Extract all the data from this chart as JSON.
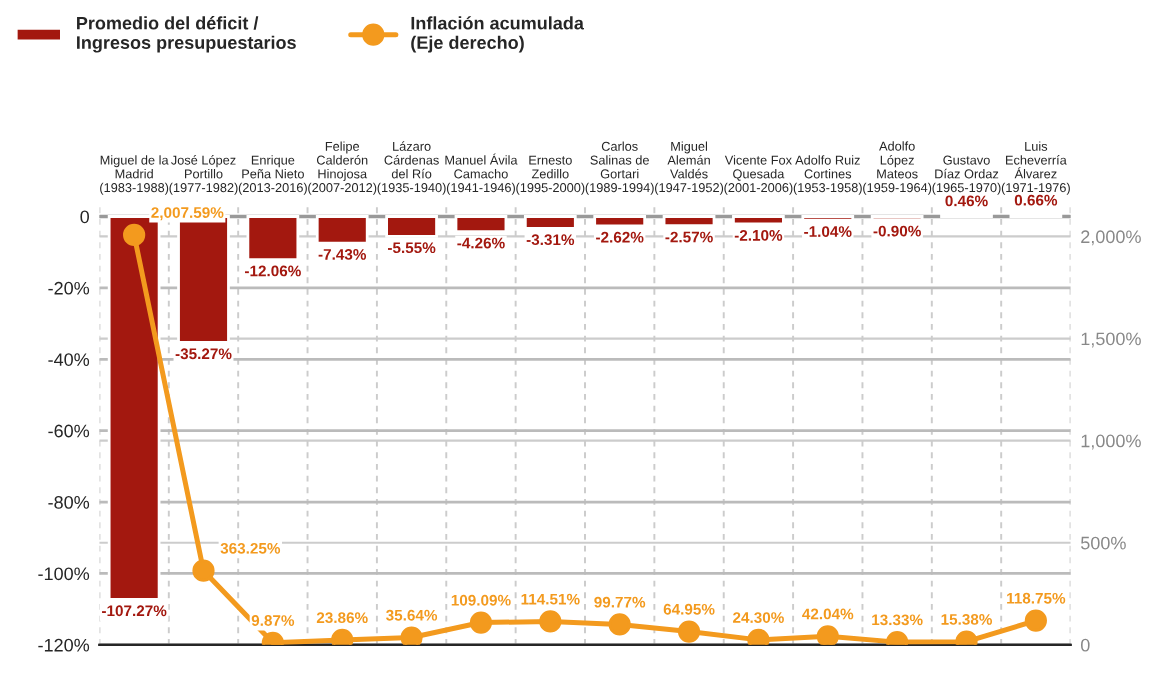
{
  "chart_data": {
    "type": "bar",
    "categories": [
      "Miguel de la\nMadrid\n(1983-1988)",
      "José López\nPortillo\n(1977-1982)",
      "Enrique\nPeña Nieto\n(2013-2016)",
      "Felipe\nCalderón\nHinojosa\n(2007-2012)",
      "Lázaro\nCárdenas\ndel Río\n(1935-1940)",
      "Manuel Ávila\nCamacho\n(1941-1946)",
      "Ernesto\nZedillo\n(1995-2000)",
      "Carlos\nSalinas de\nGortari\n(1989-1994)",
      "Miguel\nAlemán\nValdés\n(1947-1952)",
      "Vicente Fox\nQuesada\n(2001-2006)",
      "Adolfo Ruiz\nCortines\n(1953-1958)",
      "Adolfo\nLópez\nMateos\n(1959-1964)",
      "Gustavo\nDíaz Ordaz\n(1965-1970)",
      "Luis\nEcheverría\nÁlvarez\n(1971-1976)"
    ],
    "series": [
      {
        "name": "Promedio del déficit /\nIngresos presupuestarios",
        "color": "#a3180f",
        "values": [
          -107.27,
          -35.27,
          -12.06,
          -7.43,
          -5.55,
          -4.26,
          -3.31,
          -2.62,
          -2.57,
          -2.1,
          -1.04,
          -0.9,
          0.46,
          0.66
        ],
        "value_labels": [
          "-107.27%",
          "-35.27%",
          "-12.06%",
          "-7.43%",
          "-5.55%",
          "-4.26%",
          "-3.31%",
          "-2.62%",
          "-2.57%",
          "-2.10%",
          "-1.04%",
          "-0.90%",
          "0.46%",
          "0.66%"
        ]
      },
      {
        "name": "Inflación acumulada\n(Eje derecho)",
        "type": "line",
        "axis": "y2",
        "color": "#f39a1e",
        "marker": "circle",
        "values": [
          2007.59,
          363.25,
          9.87,
          23.86,
          35.64,
          109.09,
          114.51,
          99.77,
          64.95,
          24.3,
          42.04,
          13.33,
          15.38,
          118.75
        ],
        "value_labels": [
          "2,007.59%",
          "363.25%",
          "9.87%",
          "23.86%",
          "35.64%",
          "109.09%",
          "114.51%",
          "99.77%",
          "64.95%",
          "24.30%",
          "42.04%",
          "13.33%",
          "15.38%",
          "118.75%"
        ]
      }
    ],
    "ylim": [
      -120,
      3
    ],
    "yticks": [
      0,
      {
        "value": -20,
        "label": "-20%"
      },
      {
        "value": -40,
        "label": "-40%"
      },
      {
        "value": -60,
        "label": "-60%"
      },
      {
        "value": -80,
        "label": "-80%"
      },
      {
        "value": -100,
        "label": "-100%"
      },
      {
        "value": -120,
        "label": "-120%"
      }
    ],
    "y2lim": [
      0,
      2150
    ],
    "y2ticks": [
      0,
      {
        "value": 500,
        "label": "500%"
      },
      {
        "value": 1000,
        "label": "1,000%"
      },
      {
        "value": 1500,
        "label": "1,500%"
      },
      {
        "value": 2000,
        "label": "2,000%"
      }
    ],
    "grid": true,
    "legend": "top left"
  }
}
